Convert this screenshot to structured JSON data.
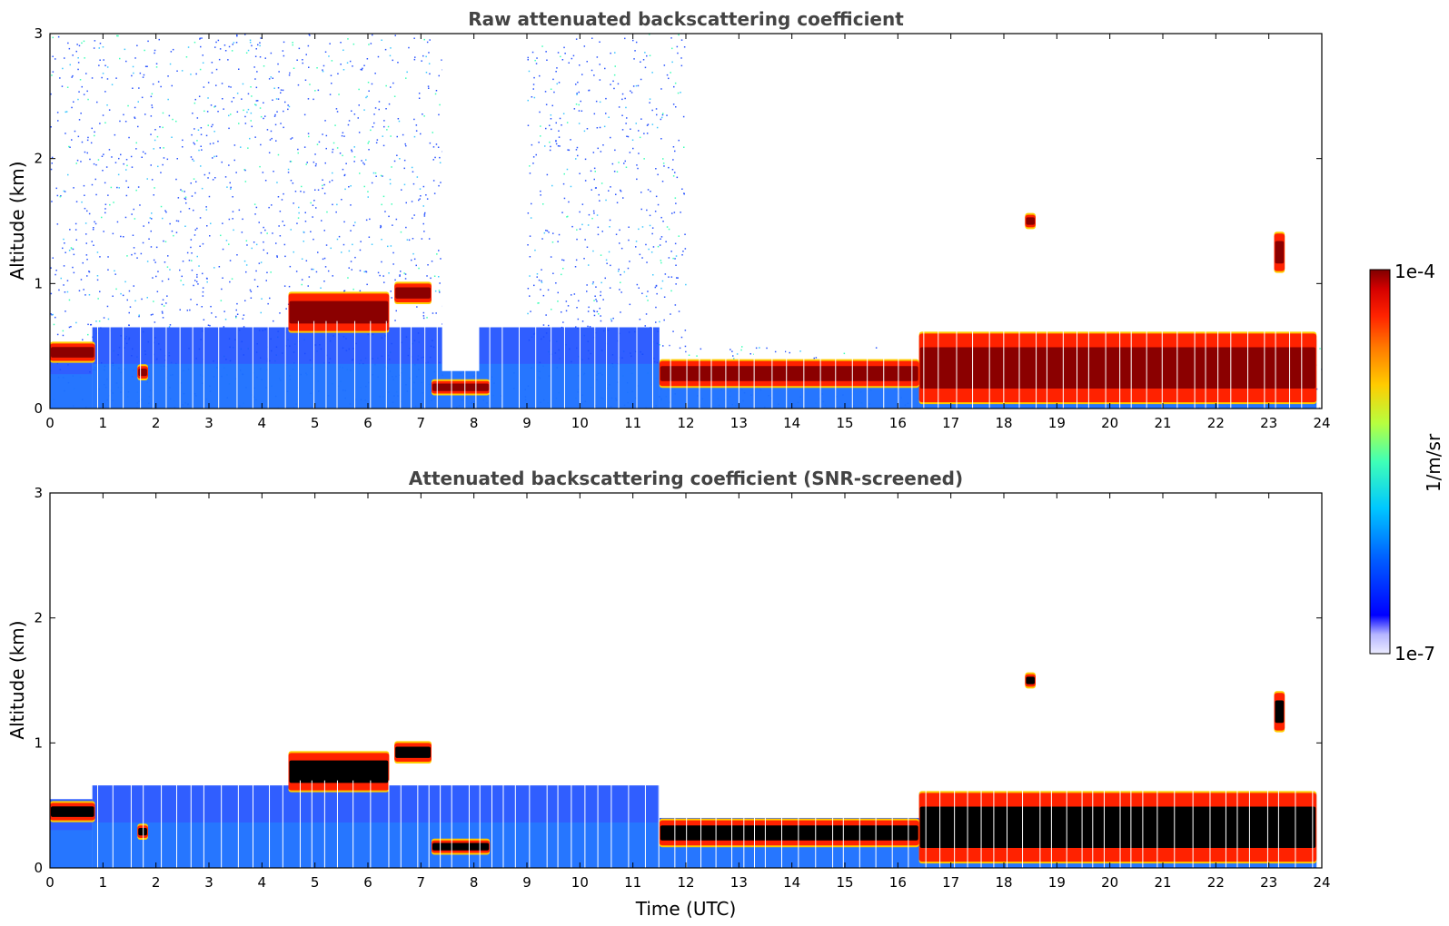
{
  "chart_data": [
    {
      "type": "heatmap",
      "title": "Raw attenuated backscattering coefficient",
      "ylabel": "Altitude (km)",
      "xlabel": "",
      "xlim": [
        0,
        24
      ],
      "ylim": [
        0,
        3
      ],
      "xticks": [
        "0",
        "1",
        "2",
        "3",
        "4",
        "5",
        "6",
        "7",
        "8",
        "9",
        "10",
        "11",
        "12",
        "13",
        "14",
        "15",
        "16",
        "17",
        "18",
        "19",
        "20",
        "21",
        "22",
        "23",
        "24"
      ],
      "yticks": [
        "0",
        "1",
        "2",
        "3"
      ],
      "noise_top_km": [
        3,
        3,
        3,
        3,
        3,
        3,
        3,
        3,
        0.3,
        3,
        3,
        3,
        0.5,
        0.5,
        0.5,
        0.5,
        0.5,
        0.5,
        0.5,
        0.5,
        0.5,
        0.5,
        0.5,
        0.5
      ],
      "boundary_layer": [
        {
          "x": [
            0.0,
            0.8
          ],
          "top_km": 0.5,
          "peak_km": 0.42
        },
        {
          "x": [
            0.8,
            11.5
          ],
          "top_km": 0.65,
          "peak_km": 0.0
        },
        {
          "x": [
            11.5,
            16.4
          ],
          "top_km": 0.38,
          "peak_km": 0.28
        },
        {
          "x": [
            16.4,
            23.9
          ],
          "top_km": 0.55,
          "peak_km": 0.15
        }
      ],
      "cloud_layers": [
        {
          "x": [
            0.0,
            0.85
          ],
          "alt_km": [
            0.38,
            0.52
          ]
        },
        {
          "x": [
            1.65,
            1.85
          ],
          "alt_km": [
            0.24,
            0.34
          ]
        },
        {
          "x": [
            4.5,
            6.4
          ],
          "alt_km": [
            0.62,
            0.92
          ]
        },
        {
          "x": [
            6.5,
            7.2
          ],
          "alt_km": [
            0.85,
            1.0
          ]
        },
        {
          "x": [
            7.2,
            8.3
          ],
          "alt_km": [
            0.12,
            0.22
          ]
        },
        {
          "x": [
            11.5,
            16.4
          ],
          "alt_km": [
            0.18,
            0.38
          ]
        },
        {
          "x": [
            16.4,
            23.9
          ],
          "alt_km": [
            0.05,
            0.6
          ]
        },
        {
          "x": [
            18.4,
            18.6
          ],
          "alt_km": [
            1.45,
            1.55
          ]
        },
        {
          "x": [
            23.1,
            23.3
          ],
          "alt_km": [
            1.1,
            1.4
          ]
        }
      ],
      "data_gap_hours": [
        7.4,
        8.1
      ]
    },
    {
      "type": "heatmap",
      "title": "Attenuated backscattering coefficient (SNR-screened)",
      "ylabel": "Altitude (km)",
      "xlabel": "Time (UTC)",
      "xlim": [
        0,
        24
      ],
      "ylim": [
        0,
        3
      ],
      "xticks": [
        "0",
        "1",
        "2",
        "3",
        "4",
        "5",
        "6",
        "7",
        "8",
        "9",
        "10",
        "11",
        "12",
        "13",
        "14",
        "15",
        "16",
        "17",
        "18",
        "19",
        "20",
        "21",
        "22",
        "23",
        "24"
      ],
      "yticks": [
        "0",
        "1",
        "2",
        "3"
      ],
      "boundary_layer": [
        {
          "x": [
            0.0,
            0.8
          ],
          "top_km": 0.55,
          "peak_km": 0.42
        },
        {
          "x": [
            0.8,
            11.5
          ],
          "top_km": 0.66,
          "peak_km": 0.0
        },
        {
          "x": [
            11.5,
            16.4
          ],
          "top_km": 0.4,
          "peak_km": 0.28
        },
        {
          "x": [
            16.4,
            23.9
          ],
          "top_km": 0.6,
          "peak_km": 0.15
        }
      ],
      "cloud_layers": [
        {
          "x": [
            0.0,
            0.85
          ],
          "alt_km": [
            0.38,
            0.52
          ]
        },
        {
          "x": [
            1.65,
            1.85
          ],
          "alt_km": [
            0.24,
            0.34
          ]
        },
        {
          "x": [
            4.5,
            6.4
          ],
          "alt_km": [
            0.62,
            0.92
          ]
        },
        {
          "x": [
            6.5,
            7.2
          ],
          "alt_km": [
            0.85,
            1.0
          ]
        },
        {
          "x": [
            7.2,
            8.3
          ],
          "alt_km": [
            0.12,
            0.22
          ]
        },
        {
          "x": [
            11.5,
            16.4
          ],
          "alt_km": [
            0.18,
            0.38
          ]
        },
        {
          "x": [
            16.4,
            23.9
          ],
          "alt_km": [
            0.05,
            0.6
          ]
        },
        {
          "x": [
            18.4,
            18.6
          ],
          "alt_km": [
            1.45,
            1.55
          ]
        },
        {
          "x": [
            23.1,
            23.3
          ],
          "alt_km": [
            1.1,
            1.4
          ]
        }
      ]
    }
  ],
  "colorbar": {
    "label": "1/m/sr",
    "max_label": "1e-4",
    "min_label": "1e-7",
    "scale": "log",
    "colormap": [
      "#7f0000",
      "#d40000",
      "#ff2200",
      "#ff7700",
      "#ffcc00",
      "#b7ff3f",
      "#3fffb7",
      "#00c8ff",
      "#0060ff",
      "#0000ff",
      "#b5b5ff",
      "#ececff"
    ]
  },
  "colors": {
    "cloud_peak_raw": "#8b0000",
    "cloud_peak_screened": "#000000",
    "boundary_layer": "#1a4dff",
    "noise": "#2b55ff"
  }
}
